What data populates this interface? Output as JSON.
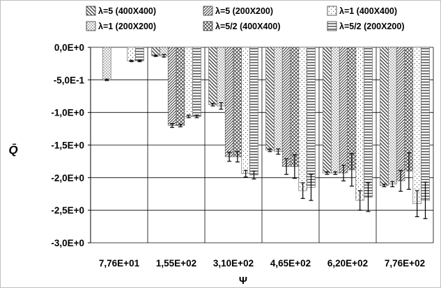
{
  "chart_data": {
    "type": "bar",
    "xlabel": "Ψ",
    "ylabel": "Q̄",
    "ylim": [
      -3.0,
      0.0
    ],
    "yticks": [
      0.0,
      -0.5,
      -1.0,
      -1.5,
      -2.0,
      -2.5,
      -3.0
    ],
    "ytick_labels": [
      "0,0E+0",
      "-5,0E-1",
      "-1,0E+0",
      "-1,5E+0",
      "-2,0E+0",
      "-2,5E+0",
      "-3,0E+0"
    ],
    "categories": [
      "7,76E+01",
      "1,55E+02",
      "3,10E+02",
      "4,65E+02",
      "6,20E+02",
      "7,76E+02"
    ],
    "grid": "vertical",
    "legend_position": "top",
    "series": [
      {
        "name": "λ=5 (400X400)",
        "pattern": "diag-back",
        "values": [
          0,
          -0.13,
          -0.88,
          -1.58,
          -1.93,
          -2.12
        ],
        "errors": [
          0,
          0.01,
          0.02,
          0.02,
          0.02,
          0.02
        ]
      },
      {
        "name": "λ=1 (200X200)",
        "pattern": "dots-dense",
        "values": [
          -0.5,
          -0.13,
          -0.9,
          -1.6,
          -1.93,
          -2.1
        ],
        "errors": [
          0.01,
          0.02,
          0.05,
          0.04,
          0.02,
          0.04
        ]
      },
      {
        "name": "λ=5 (200X200)",
        "pattern": "diag-fwd",
        "values": [
          0,
          -1.2,
          -1.68,
          -1.83,
          -1.93,
          -2.05
        ],
        "errors": [
          0,
          0.03,
          0.07,
          0.12,
          0.12,
          0.16
        ]
      },
      {
        "name": "λ=5/2 (400X400)",
        "pattern": "crosshatch",
        "values": [
          0,
          -1.2,
          -1.68,
          -1.83,
          -1.88,
          -1.9
        ],
        "errors": [
          0,
          0.02,
          0.08,
          0.18,
          0.25,
          0.28
        ]
      },
      {
        "name": "λ=1 (400X400)",
        "pattern": "dots-sparse",
        "values": [
          -0.21,
          -1.06,
          -1.94,
          -2.2,
          -2.35,
          -2.4
        ],
        "errors": [
          0.01,
          0.02,
          0.05,
          0.12,
          0.15,
          0.2
        ]
      },
      {
        "name": "λ=5/2 (200X200)",
        "pattern": "horiz-lines",
        "values": [
          -0.21,
          -1.06,
          -1.96,
          -2.15,
          -2.3,
          -2.35
        ],
        "errors": [
          0.01,
          0.02,
          0.06,
          0.2,
          0.22,
          0.28
        ]
      }
    ]
  }
}
